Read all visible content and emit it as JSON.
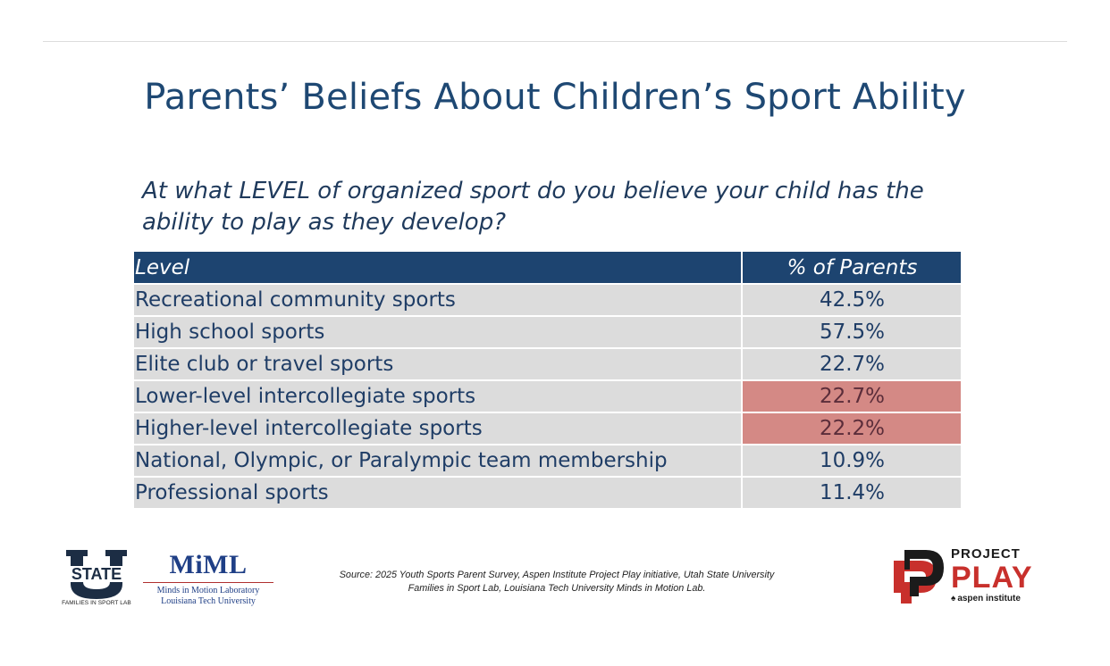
{
  "slide": {
    "title": "Parents’ Beliefs About Children’s Sport Ability",
    "question": "At what LEVEL of organized sport do you believe your child has the ability to play as they develop?"
  },
  "table": {
    "headers": {
      "level": "Level",
      "pct": "% of Parents"
    },
    "highlight_color": "#d48985",
    "header_color": "#1d4470",
    "rows": [
      {
        "level": "Recreational community sports",
        "pct": "42.5%",
        "highlight": false
      },
      {
        "level": "High school sports",
        "pct": "57.5%",
        "highlight": false
      },
      {
        "level": "Elite club or travel sports",
        "pct": "22.7%",
        "highlight": false
      },
      {
        "level": "Lower-level intercollegiate sports",
        "pct": "22.7%",
        "highlight": true
      },
      {
        "level": "Higher-level intercollegiate sports",
        "pct": "22.2%",
        "highlight": true
      },
      {
        "level": "National, Olympic, or Paralympic team membership",
        "pct": "10.9%",
        "highlight": false
      },
      {
        "level": "Professional sports",
        "pct": "11.4%",
        "highlight": false
      }
    ]
  },
  "footer": {
    "usu": {
      "wordmark": "STATE",
      "caption": "FAMILIES IN SPORT LAB"
    },
    "miml": {
      "name": "MiML",
      "line1": "Minds in Motion Laboratory",
      "line2": "Louisiana Tech University"
    },
    "source": "Source: 2025 Youth Sports Parent Survey, Aspen Institute Project Play initiative, Utah State University Families in Sport Lab, Louisiana Tech University Minds in Motion Lab.",
    "project_play": {
      "project": "PROJECT",
      "play": "PLAY",
      "aspen": "aspen institute"
    }
  }
}
